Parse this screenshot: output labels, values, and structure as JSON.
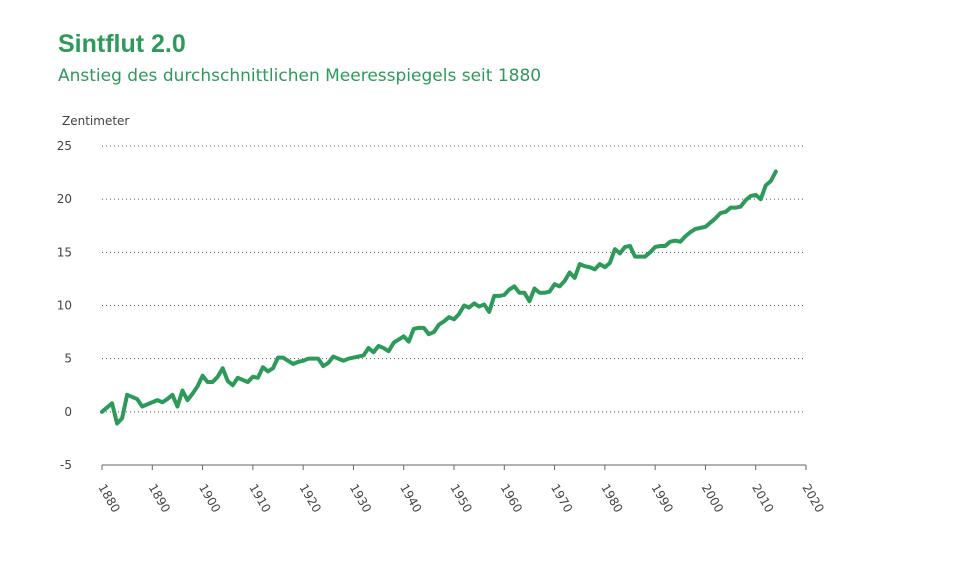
{
  "chart_data": {
    "type": "line",
    "title": "Sintflut 2.0",
    "subtitle": "Anstieg des durchschnittlichen Meeresspiegels seit 1880",
    "y_label": "Zentimeter",
    "x": [
      1880,
      1881,
      1882,
      1883,
      1884,
      1885,
      1886,
      1887,
      1888,
      1889,
      1890,
      1891,
      1892,
      1893,
      1894,
      1895,
      1896,
      1897,
      1898,
      1899,
      1900,
      1901,
      1902,
      1903,
      1904,
      1905,
      1906,
      1907,
      1908,
      1909,
      1910,
      1911,
      1912,
      1913,
      1914,
      1915,
      1916,
      1917,
      1918,
      1919,
      1920,
      1921,
      1922,
      1923,
      1924,
      1925,
      1926,
      1927,
      1928,
      1929,
      1930,
      1931,
      1932,
      1933,
      1934,
      1935,
      1936,
      1937,
      1938,
      1939,
      1940,
      1941,
      1942,
      1943,
      1944,
      1945,
      1946,
      1947,
      1948,
      1949,
      1950,
      1951,
      1952,
      1953,
      1954,
      1955,
      1956,
      1957,
      1958,
      1959,
      1960,
      1961,
      1962,
      1963,
      1964,
      1965,
      1966,
      1967,
      1968,
      1969,
      1970,
      1971,
      1972,
      1973,
      1974,
      1975,
      1976,
      1977,
      1978,
      1979,
      1980,
      1981,
      1982,
      1983,
      1984,
      1985,
      1986,
      1987,
      1988,
      1989,
      1990,
      1991,
      1992,
      1993,
      1994,
      1995,
      1996,
      1997,
      1998,
      1999,
      2000,
      2001,
      2002,
      2003,
      2004,
      2005,
      2006,
      2007,
      2008,
      2009,
      2010,
      2011,
      2012,
      2013,
      2014
    ],
    "series": [
      {
        "color": "#2e9a5a",
        "values": [
          0,
          0.4,
          0.8,
          -1.1,
          -0.6,
          1.6,
          1.4,
          1.2,
          0.5,
          0.7,
          0.9,
          1.1,
          0.9,
          1.2,
          1.6,
          0.5,
          2.0,
          1.1,
          1.7,
          2.4,
          3.4,
          2.8,
          2.8,
          3.3,
          4.1,
          2.9,
          2.5,
          3.2,
          3.0,
          2.8,
          3.3,
          3.2,
          4.2,
          3.8,
          4.1,
          5.1,
          5.1,
          4.8,
          4.5,
          4.7,
          4.8,
          5.0,
          5.0,
          5.0,
          4.3,
          4.6,
          5.2,
          5.0,
          4.8,
          5.0,
          5.1,
          5.2,
          5.3,
          6.0,
          5.6,
          6.2,
          6.0,
          5.7,
          6.5,
          6.8,
          7.1,
          6.6,
          7.8,
          7.9,
          7.9,
          7.3,
          7.5,
          8.2,
          8.5,
          8.9,
          8.7,
          9.2,
          10.0,
          9.8,
          10.2,
          9.9,
          10.1,
          9.4,
          10.9,
          10.9,
          11.0,
          11.5,
          11.8,
          11.2,
          11.2,
          10.4,
          11.6,
          11.2,
          11.2,
          11.3,
          12.0,
          11.8,
          12.3,
          13.1,
          12.6,
          13.9,
          13.7,
          13.6,
          13.4,
          13.9,
          13.6,
          14.0,
          15.3,
          14.9,
          15.5,
          15.6,
          14.6,
          14.6,
          14.6,
          15.0,
          15.5,
          15.6,
          15.6,
          16.0,
          16.1,
          16.0,
          16.5,
          16.9,
          17.2,
          17.3,
          17.4,
          17.8,
          18.2,
          18.7,
          18.8,
          19.2,
          19.2,
          19.3,
          19.9,
          20.3,
          20.4,
          20.0,
          21.3,
          21.7,
          22.6
        ]
      }
    ],
    "xlim": [
      1880,
      2020
    ],
    "xticks": [
      1880,
      1890,
      1900,
      1910,
      1920,
      1930,
      1940,
      1950,
      1960,
      1970,
      1980,
      1990,
      2000,
      2010,
      2020
    ],
    "ylim": [
      -5,
      25
    ],
    "yticks": [
      -5,
      0,
      5,
      10,
      15,
      20,
      25
    ],
    "grid": true
  }
}
